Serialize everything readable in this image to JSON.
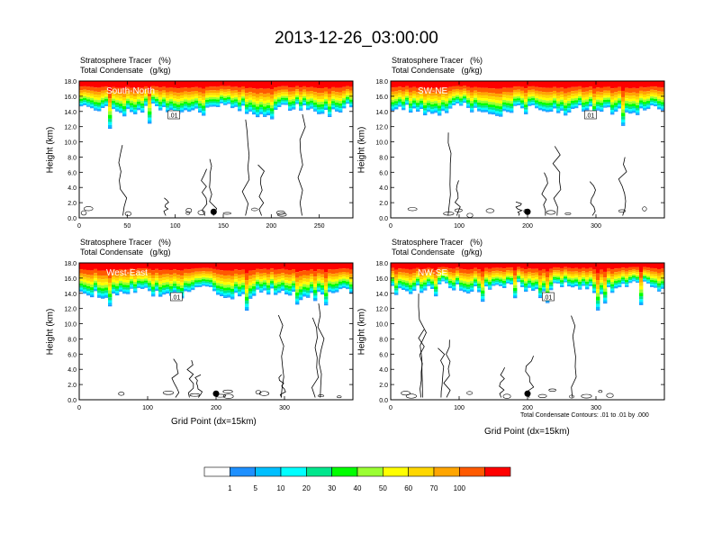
{
  "title": "2013-12-26_03:00:00",
  "panel_title_line1": "Stratosphere Tracer   (%)",
  "panel_title_line2": "Total Condensate   (g/kg)",
  "ylabel": "Height (km)",
  "xlabel": "Grid Point (dx=15km)",
  "contour_note": "Total Condensate Contours: .01 to .01 by .000",
  "contour_label": ".01",
  "colorbar": {
    "labels": [
      "1",
      "5",
      "10",
      "20",
      "30",
      "40",
      "50",
      "60",
      "70",
      "100"
    ],
    "colors": [
      "#ffffff",
      "#1e90ff",
      "#00bfff",
      "#00ffff",
      "#00e68c",
      "#00ff00",
      "#9aff32",
      "#ffff00",
      "#ffd700",
      "#ffa500",
      "#ff5a00",
      "#ff0000"
    ]
  },
  "chart_data": [
    {
      "type": "heatmap",
      "name": "South-North",
      "xlim": [
        0,
        285
      ],
      "xticks": [
        0,
        50,
        100,
        150,
        200,
        250
      ],
      "ylim": [
        0,
        18
      ],
      "yticks": [
        "0.0",
        "2.0",
        "4.0",
        "6.0",
        "8.0",
        "10.0",
        "12.0",
        "14.0",
        "16.0",
        "18.0"
      ],
      "marker_x": 140,
      "tropopause_km": 14.2
    },
    {
      "type": "heatmap",
      "name": "SW-NE",
      "xlim": [
        0,
        400
      ],
      "xticks": [
        0,
        100,
        200,
        300
      ],
      "ylim": [
        0,
        18
      ],
      "yticks": [
        "0.0",
        "2.0",
        "4.0",
        "6.0",
        "8.0",
        "10.0",
        "12.0",
        "14.0",
        "16.0",
        "18.0"
      ],
      "marker_x": 200,
      "tropopause_km": 14.2
    },
    {
      "type": "heatmap",
      "name": "West-East",
      "xlim": [
        0,
        400
      ],
      "xticks": [
        0,
        100,
        200,
        300
      ],
      "ylim": [
        0,
        18
      ],
      "yticks": [
        "0.0",
        "2.0",
        "4.0",
        "6.0",
        "8.0",
        "10.0",
        "12.0",
        "14.0",
        "16.0",
        "18.0"
      ],
      "marker_x": 200,
      "tropopause_km": 14.0
    },
    {
      "type": "heatmap",
      "name": "NW-SE",
      "xlim": [
        0,
        400
      ],
      "xticks": [
        0,
        100,
        200,
        300
      ],
      "ylim": [
        0,
        18
      ],
      "yticks": [
        "0.0",
        "2.0",
        "4.0",
        "6.0",
        "8.0",
        "10.0",
        "12.0",
        "14.0",
        "16.0",
        "18.0"
      ],
      "marker_x": 200,
      "tropopause_km": 14.8
    }
  ]
}
